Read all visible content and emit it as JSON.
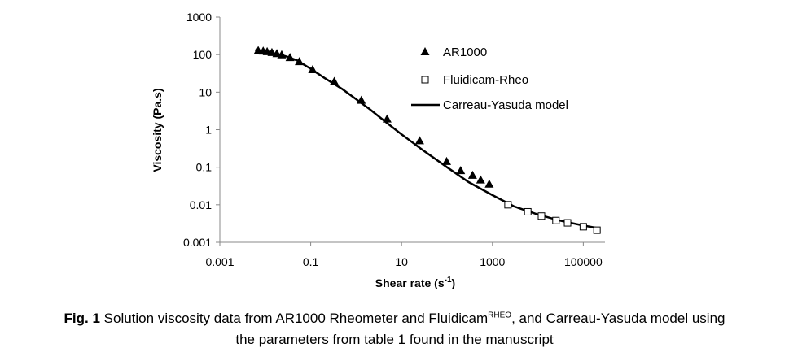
{
  "chart_data": {
    "type": "scatter",
    "x_scale": "log",
    "y_scale": "log",
    "xlabel": "Shear rate (s",
    "xlabel_sup": "-1",
    "xlabel_end": ")",
    "ylabel": "Viscosity (Pa.s)",
    "xlim": [
      0.001,
      300000
    ],
    "ylim": [
      0.001,
      1000
    ],
    "xticks": [
      "0.001",
      "0.1",
      "10",
      "1000",
      "100000"
    ],
    "yticks": [
      "1000",
      "100",
      "10",
      "1",
      "0.1",
      "0.01",
      "0.001"
    ],
    "grid": false,
    "legend_position": "top-right",
    "series": [
      {
        "name": "AR1000",
        "marker": "filled-triangle",
        "points": [
          [
            0.007,
            126
          ],
          [
            0.009,
            122
          ],
          [
            0.011,
            118
          ],
          [
            0.014,
            112
          ],
          [
            0.018,
            105
          ],
          [
            0.023,
            97
          ],
          [
            0.035,
            82
          ],
          [
            0.056,
            64
          ],
          [
            0.11,
            39
          ],
          [
            0.33,
            19
          ],
          [
            1.3,
            6
          ],
          [
            4.8,
            1.9
          ],
          [
            25,
            0.5
          ],
          [
            98,
            0.14
          ],
          [
            200,
            0.08
          ],
          [
            365,
            0.06
          ],
          [
            550,
            0.045
          ],
          [
            850,
            0.035
          ]
        ]
      },
      {
        "name": "Fluidicam-Rheo",
        "marker": "open-square",
        "points": [
          [
            2200,
            0.01
          ],
          [
            6000,
            0.0065
          ],
          [
            12000,
            0.005
          ],
          [
            25000,
            0.0038
          ],
          [
            45000,
            0.0033
          ],
          [
            100000,
            0.0026
          ],
          [
            200000,
            0.0021
          ]
        ]
      },
      {
        "name": "Carreau-Yasuda model",
        "marker": "line",
        "points": [
          [
            0.006,
            130
          ],
          [
            0.01,
            120
          ],
          [
            0.02,
            102
          ],
          [
            0.03,
            88
          ],
          [
            0.05,
            70
          ],
          [
            0.1,
            42
          ],
          [
            0.2,
            24
          ],
          [
            0.5,
            12
          ],
          [
            1,
            6.5
          ],
          [
            2,
            3.5
          ],
          [
            5,
            1.45
          ],
          [
            10,
            0.75
          ],
          [
            30,
            0.28
          ],
          [
            100,
            0.1
          ],
          [
            300,
            0.04
          ],
          [
            1000,
            0.018
          ],
          [
            3000,
            0.009
          ],
          [
            10000,
            0.0055
          ],
          [
            30000,
            0.0038
          ],
          [
            100000,
            0.0028
          ],
          [
            200000,
            0.0024
          ]
        ]
      }
    ]
  },
  "caption": {
    "fig_label": "Fig. 1",
    "text_1": "Solution viscosity data from AR1000 Rheometer and Fluidicam",
    "superscript": "RHEO",
    "text_2": ", and Carreau-Yasuda model using",
    "text_3": "the parameters from table 1 found in the manuscript"
  }
}
